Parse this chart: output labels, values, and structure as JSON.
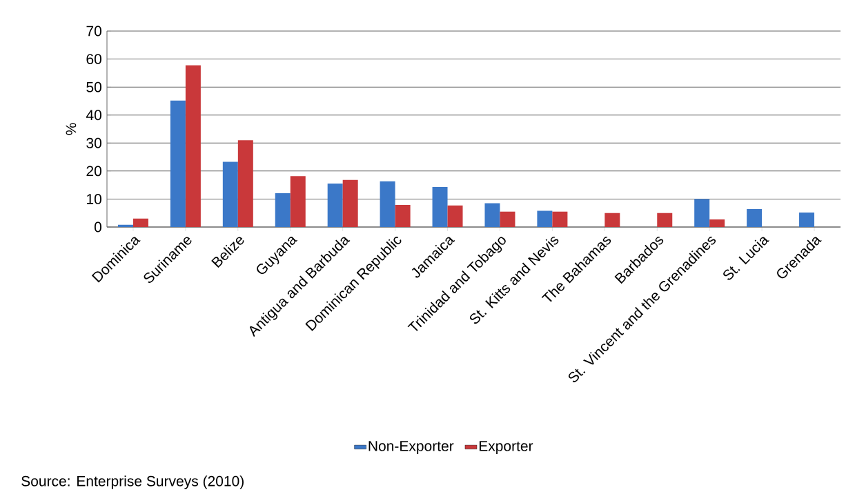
{
  "chart_data": {
    "type": "bar",
    "ylabel": "%",
    "categories": [
      "Dominica",
      "Suriname",
      "Belize",
      "Guyana",
      "Antigua and Barbuda",
      "Dominican Republic",
      "Jamaica",
      "Trinidad and Tobago",
      "St. Kitts and Nevis",
      "The Bahamas",
      "Barbados",
      "St. Vincent and the Grenadines",
      "St. Lucia",
      "Grenada"
    ],
    "series": [
      {
        "name": "Non-Exporter",
        "color": "#3b78c8",
        "values": [
          0.8,
          45.2,
          23.3,
          12.1,
          15.5,
          16.3,
          14.3,
          8.5,
          5.8,
          null,
          null,
          10.0,
          6.4,
          5.2
        ]
      },
      {
        "name": "Exporter",
        "color": "#c9383a",
        "values": [
          3.0,
          57.8,
          31.0,
          18.2,
          16.8,
          7.9,
          7.7,
          5.5,
          5.5,
          5.0,
          5.0,
          2.7,
          null,
          null
        ]
      }
    ],
    "ylim": [
      0,
      70
    ],
    "yticks": [
      0,
      10,
      20,
      30,
      40,
      50,
      60,
      70
    ],
    "grid": "y",
    "legend": "bottom",
    "annotations": [
      "Source: Enterprise Surveys (2010)"
    ]
  }
}
